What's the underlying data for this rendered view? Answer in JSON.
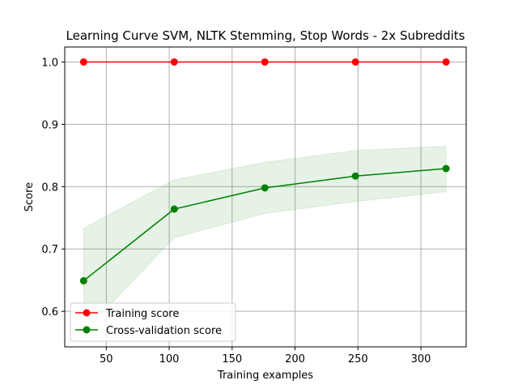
{
  "chart_data": {
    "type": "line",
    "title": "Learning Curve SVM, NLTK Stemming, Stop Words - 2x Subreddits",
    "xlabel": "Training examples",
    "ylabel": "Score",
    "xlim": [
      17,
      336
    ],
    "ylim": [
      0.543,
      1.024
    ],
    "xticks": [
      50,
      100,
      150,
      200,
      250,
      300
    ],
    "xtick_labels": [
      "50",
      "100",
      "150",
      "200",
      "250",
      "300"
    ],
    "yticks": [
      0.6,
      0.7,
      0.8,
      0.9,
      1.0
    ],
    "ytick_labels": [
      "0.6",
      "0.7",
      "0.8",
      "0.9",
      "1.0"
    ],
    "grid": true,
    "legend_position": "lower-left",
    "x": [
      32,
      104,
      176,
      248,
      320
    ],
    "series": [
      {
        "name": "Training score",
        "color": "#ff0000",
        "values": [
          1.0,
          1.0,
          1.0,
          1.0,
          1.0
        ],
        "band_lower": [
          1.0,
          1.0,
          1.0,
          1.0,
          1.0
        ],
        "band_upper": [
          1.0,
          1.0,
          1.0,
          1.0,
          1.0
        ]
      },
      {
        "name": "Cross-validation score",
        "color": "#008000",
        "values": [
          0.649,
          0.764,
          0.798,
          0.817,
          0.829
        ],
        "band_lower": [
          0.566,
          0.718,
          0.757,
          0.776,
          0.792
        ],
        "band_upper": [
          0.733,
          0.811,
          0.839,
          0.858,
          0.865
        ]
      }
    ]
  }
}
